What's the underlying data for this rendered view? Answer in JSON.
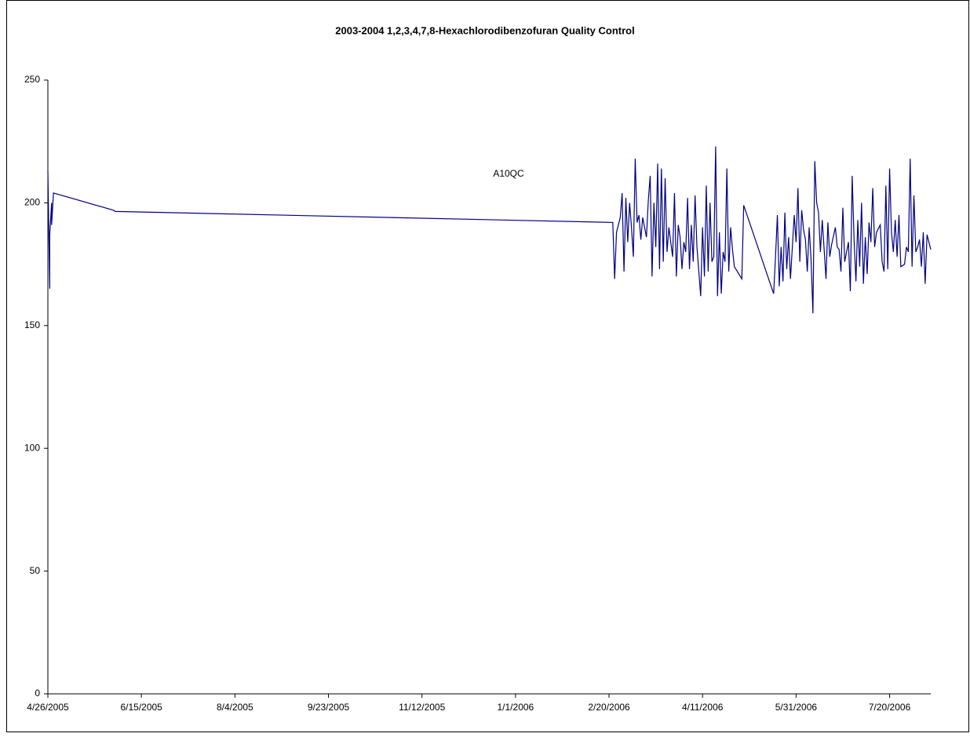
{
  "chart_data": {
    "type": "line",
    "title": "2003-2004 1,2,3,4,7,8-Hexachlorodibenzofuran  Quality Control",
    "annotation": "A10QC",
    "xlim": [
      "4/26/2005",
      "8/11/2006"
    ],
    "xticks": [
      "4/26/2005",
      "6/15/2005",
      "8/4/2005",
      "9/23/2005",
      "11/12/2005",
      "1/1/2006",
      "2/20/2006",
      "4/11/2006",
      "5/31/2006",
      "7/20/2006"
    ],
    "ylim": [
      0,
      250
    ],
    "yticks": [
      0,
      50,
      100,
      150,
      200,
      250
    ],
    "grid": false,
    "x": [
      "4/26/2005",
      "4/27/2005",
      "4/27/2005",
      "4/28/2005",
      "4/28/2005",
      "4/29/2005",
      "5/31/2005",
      "6/1/2005",
      "2/22/2006",
      "2/23/2006",
      "2/24/2006",
      "2/26/2006",
      "2/27/2006",
      "2/28/2006",
      "3/1/2006",
      "3/2/2006",
      "3/3/2006",
      "3/4/2006",
      "3/5/2006",
      "3/6/2006",
      "3/7/2006",
      "3/8/2006",
      "3/9/2006",
      "3/10/2006",
      "3/12/2006",
      "3/13/2006",
      "3/14/2006",
      "3/15/2006",
      "3/16/2006",
      "3/17/2006",
      "3/18/2006",
      "3/19/2006",
      "3/20/2006",
      "3/21/2006",
      "3/22/2006",
      "3/23/2006",
      "3/24/2006",
      "3/26/2006",
      "3/27/2006",
      "3/28/2006",
      "3/29/2006",
      "3/30/2006",
      "3/31/2006",
      "4/1/2006",
      "4/2/2006",
      "4/3/2006",
      "4/4/2006",
      "4/5/2006",
      "4/6/2006",
      "4/7/2006",
      "4/8/2006",
      "4/9/2006",
      "4/10/2006",
      "4/11/2006",
      "4/12/2006",
      "4/13/2006",
      "4/14/2006",
      "4/15/2006",
      "4/16/2006",
      "4/17/2006",
      "4/18/2006",
      "4/19/2006",
      "4/20/2006",
      "4/21/2006",
      "4/22/2006",
      "4/23/2006",
      "4/24/2006",
      "4/25/2006",
      "4/26/2006",
      "4/27/2006",
      "4/28/2006",
      "5/2/2006",
      "5/3/2006",
      "5/19/2006",
      "5/20/2006",
      "5/21/2006",
      "5/22/2006",
      "5/23/2006",
      "5/24/2006",
      "5/25/2006",
      "5/26/2006",
      "5/27/2006",
      "5/28/2006",
      "5/30/2006",
      "5/31/2006",
      "6/1/2006",
      "6/2/2006",
      "6/3/2006",
      "6/4/2006",
      "6/5/2006",
      "6/6/2006",
      "6/7/2006",
      "6/8/2006",
      "6/9/2006",
      "6/10/2006",
      "6/11/2006",
      "6/12/2006",
      "6/13/2006",
      "6/14/2006",
      "6/15/2006",
      "6/16/2006",
      "6/17/2006",
      "6/18/2006",
      "6/19/2006",
      "6/21/2006",
      "6/22/2006",
      "6/23/2006",
      "6/24/2006",
      "6/25/2006",
      "6/26/2006",
      "6/27/2006",
      "6/28/2006",
      "6/29/2006",
      "6/30/2006",
      "7/1/2006",
      "7/2/2006",
      "7/3/2006",
      "7/4/2006",
      "7/5/2006",
      "7/6/2006",
      "7/7/2006",
      "7/8/2006",
      "7/9/2006",
      "7/10/2006",
      "7/11/2006",
      "7/12/2006",
      "7/13/2006",
      "7/15/2006",
      "7/16/2006",
      "7/17/2006",
      "7/18/2006",
      "7/19/2006",
      "7/20/2006",
      "7/21/2006",
      "7/22/2006",
      "7/23/2006",
      "7/24/2006",
      "7/25/2006",
      "7/26/2006",
      "7/28/2006",
      "7/29/2006",
      "7/30/2006",
      "7/31/2006",
      "8/1/2006",
      "8/2/2006",
      "8/3/2006",
      "8/4/2006",
      "8/5/2006",
      "8/6/2006",
      "8/7/2006",
      "8/8/2006",
      "8/9/2006",
      "8/10/2006",
      "8/11/2006"
    ],
    "color": "#000080",
    "values": [
      213,
      165,
      187,
      200,
      191,
      204,
      197,
      196.5,
      192,
      169,
      188,
      194,
      204,
      172,
      202,
      184,
      200,
      190,
      178,
      218,
      192,
      195,
      185,
      194,
      186,
      201,
      211,
      170,
      200,
      182,
      216,
      173,
      214,
      176,
      210,
      180,
      190,
      178,
      204,
      170,
      191,
      186,
      173,
      184,
      180,
      202,
      173,
      191,
      176,
      203,
      182,
      172,
      162,
      190,
      170,
      207,
      172,
      200,
      176,
      178,
      223,
      162,
      188,
      163,
      180,
      176,
      214,
      172,
      190,
      181,
      174,
      169,
      199,
      163,
      178,
      195,
      166,
      182,
      168,
      196,
      173,
      186,
      169,
      195,
      184,
      206,
      176,
      197,
      189,
      185,
      172,
      190,
      177,
      155,
      217,
      200,
      196,
      180,
      193,
      181,
      169,
      192,
      178,
      183,
      190,
      182,
      181,
      172,
      198,
      176,
      180,
      184,
      164,
      211,
      185,
      168,
      193,
      174,
      200,
      167,
      186,
      171,
      192,
      184,
      206,
      182,
      188,
      191,
      176,
      172,
      207,
      173,
      214,
      188,
      180,
      193,
      178,
      195,
      174,
      175,
      182,
      180,
      218,
      174,
      203,
      180,
      182,
      185,
      174,
      188,
      167,
      187,
      184,
      181
    ]
  }
}
